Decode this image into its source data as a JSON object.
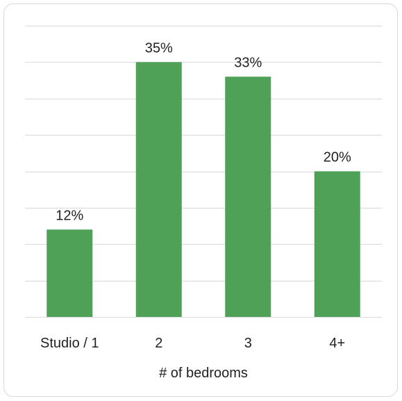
{
  "chart_data": {
    "type": "bar",
    "title": "",
    "xlabel": "# of bedrooms",
    "ylabel": "",
    "categories": [
      "Studio / 1",
      "2",
      "3",
      "4+"
    ],
    "values": [
      12,
      35,
      33,
      20
    ],
    "data_labels": [
      "12%",
      "35%",
      "33%",
      "20%"
    ],
    "unit": "%",
    "ylim": [
      0,
      40
    ],
    "y_gridline_step": 5,
    "grid": true,
    "legend": "none",
    "bar_color": "#4ea157"
  }
}
